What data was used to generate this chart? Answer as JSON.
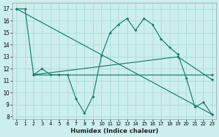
{
  "xlabel": "Humidex (Indice chaleur)",
  "background_color": "#cceeed",
  "grid_color": "#aaddda",
  "line_color": "#1a7a6e",
  "xlim": [
    -0.5,
    23.5
  ],
  "ylim": [
    7.8,
    17.5
  ],
  "yticks": [
    8,
    9,
    10,
    11,
    12,
    13,
    14,
    15,
    16,
    17
  ],
  "xticks": [
    0,
    1,
    2,
    3,
    4,
    5,
    6,
    7,
    8,
    9,
    10,
    11,
    12,
    13,
    14,
    15,
    16,
    17,
    18,
    19,
    20,
    21,
    22,
    23
  ],
  "line1": [
    [
      0,
      17
    ],
    [
      1,
      17
    ],
    [
      2,
      11.5
    ],
    [
      3,
      12
    ],
    [
      4,
      11.5
    ],
    [
      5,
      11.5
    ],
    [
      6,
      11.5
    ],
    [
      7,
      9.5
    ],
    [
      8,
      8.3
    ],
    [
      9,
      9.7
    ],
    [
      10,
      13.1
    ],
    [
      11,
      15.0
    ],
    [
      12,
      15.7
    ],
    [
      13,
      16.2
    ],
    [
      14,
      15.2
    ],
    [
      15,
      16.2
    ],
    [
      16,
      15.7
    ],
    [
      17,
      14.5
    ],
    [
      18,
      13.8
    ],
    [
      19,
      13.2
    ],
    [
      20,
      11.2
    ],
    [
      21,
      8.8
    ],
    [
      22,
      9.2
    ],
    [
      23,
      8.2
    ]
  ],
  "line2_x": [
    0,
    23
  ],
  "line2_y": [
    17,
    8.2
  ],
  "line3_x": [
    2,
    23
  ],
  "line3_y": [
    11.5,
    11.5
  ],
  "line4_x": [
    2,
    19,
    23
  ],
  "line4_y": [
    11.5,
    13.0,
    11.1
  ]
}
